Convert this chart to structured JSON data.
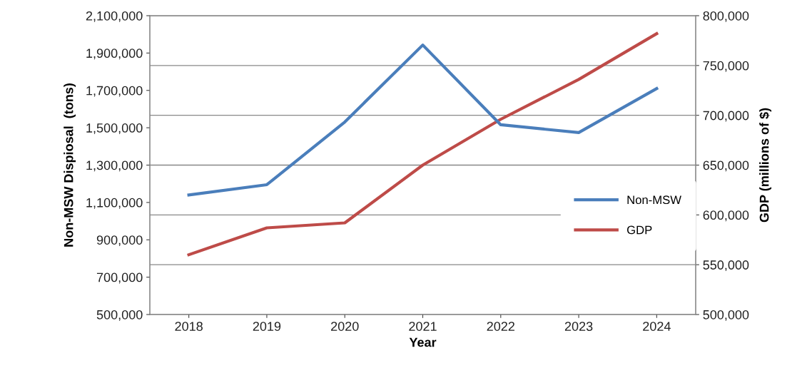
{
  "chart_data": {
    "type": "line",
    "xlabel": "Year",
    "ylabel": "Non-MSW Dispiosal  (tons)",
    "y2label": "GDP (millions of $)",
    "categories": [
      "2018",
      "2019",
      "2020",
      "2021",
      "2022",
      "2023",
      "2024"
    ],
    "series": [
      {
        "name": "Non-MSW",
        "color": "#4a7ebb",
        "values": [
          1140000,
          1195000,
          1531000,
          1943000,
          1516000,
          1474000,
          1710000
        ]
      },
      {
        "name": "GDP",
        "color": "#be4b48",
        "axis": "y2",
        "values": [
          560000,
          587000,
          592000,
          650000,
          696000,
          736000,
          782000
        ]
      }
    ],
    "ylim": [
      500000,
      2100000
    ],
    "yticks": [
      {
        "value": 500000,
        "label": "500,000"
      },
      {
        "value": 700000,
        "label": "700,000"
      },
      {
        "value": 900000,
        "label": "900,000"
      },
      {
        "value": 1100000,
        "label": "1,100,000"
      },
      {
        "value": 1300000,
        "label": "1,300,000"
      },
      {
        "value": 1500000,
        "label": "1,500,000"
      },
      {
        "value": 1700000,
        "label": "1,700,000"
      },
      {
        "value": 1900000,
        "label": "1,900,000"
      },
      {
        "value": 2100000,
        "label": "2,100,000"
      }
    ],
    "y2lim": [
      500000,
      800000
    ],
    "y2ticks": [
      {
        "value": 500000,
        "label": "500,000"
      },
      {
        "value": 550000,
        "label": "550,000"
      },
      {
        "value": 600000,
        "label": "600,000"
      },
      {
        "value": 650000,
        "label": "650,000"
      },
      {
        "value": 700000,
        "label": "700,000"
      },
      {
        "value": 750000,
        "label": "750,000"
      },
      {
        "value": 800000,
        "label": "800,000"
      }
    ],
    "grid": "y2",
    "legend": "right",
    "line_style": "solid",
    "marker": "none"
  }
}
